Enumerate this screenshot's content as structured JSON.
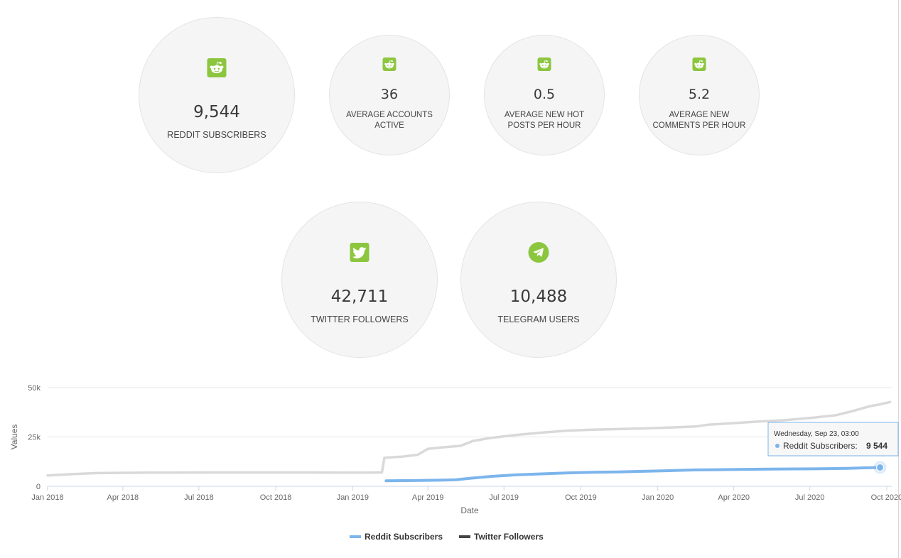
{
  "stats": {
    "reddit_subscribers": {
      "value": "9,544",
      "label": "REDDIT SUBSCRIBERS",
      "icon": "reddit-icon"
    },
    "avg_accounts_active": {
      "value": "36",
      "label_line1": "AVERAGE ACCOUNTS",
      "label_line2": "ACTIVE",
      "icon": "reddit-icon"
    },
    "avg_hot_posts": {
      "value": "0.5",
      "label_line1": "AVERAGE NEW HOT",
      "label_line2": "POSTS PER HOUR",
      "icon": "reddit-icon"
    },
    "avg_comments": {
      "value": "5.2",
      "label_line1": "AVERAGE NEW",
      "label_line2": "COMMENTS PER HOUR",
      "icon": "reddit-icon"
    },
    "twitter_followers": {
      "value": "42,711",
      "label": "TWITTER FOLLOWERS",
      "icon": "twitter-icon"
    },
    "telegram_users": {
      "value": "10,488",
      "label": "TELEGRAM USERS",
      "icon": "telegram-icon"
    }
  },
  "colors": {
    "icon_green": "#8cc63f",
    "reddit_series": "#7cb5ec",
    "twitter_series_line": "#d9d9d9",
    "twitter_legend": "#434348"
  },
  "chart_data": {
    "type": "line",
    "xlabel": "Date",
    "ylabel": "Values",
    "ylim": [
      0,
      50000
    ],
    "y_ticks": [
      "0",
      "25k",
      "50k"
    ],
    "x_ticks": [
      "Jan 2018",
      "Apr 2018",
      "Jul 2018",
      "Oct 2018",
      "Jan 2019",
      "Apr 2019",
      "Jul 2019",
      "Oct 2019",
      "Jan 2020",
      "Apr 2020",
      "Jul 2020",
      "Oct 2020"
    ],
    "grid": true,
    "legend_position": "bottom-center",
    "series": [
      {
        "name": "Reddit Subscribers",
        "points": [
          [
            "2019-02-10",
            2800
          ],
          [
            "2019-03-15",
            2900
          ],
          [
            "2019-04-15",
            3100
          ],
          [
            "2019-05-05",
            3300
          ],
          [
            "2019-05-20",
            4000
          ],
          [
            "2019-06-15",
            5000
          ],
          [
            "2019-07-15",
            5800
          ],
          [
            "2019-08-15",
            6300
          ],
          [
            "2019-09-15",
            6800
          ],
          [
            "2019-10-15",
            7100
          ],
          [
            "2019-11-15",
            7300
          ],
          [
            "2019-12-15",
            7600
          ],
          [
            "2020-01-15",
            7900
          ],
          [
            "2020-02-15",
            8300
          ],
          [
            "2020-03-15",
            8400
          ],
          [
            "2020-04-15",
            8600
          ],
          [
            "2020-05-15",
            8700
          ],
          [
            "2020-06-15",
            8800
          ],
          [
            "2020-07-15",
            8900
          ],
          [
            "2020-08-15",
            9100
          ],
          [
            "2020-09-01",
            9300
          ],
          [
            "2020-09-23",
            9544
          ]
        ]
      },
      {
        "name": "Twitter Followers",
        "points": [
          [
            "2018-01-01",
            5500
          ],
          [
            "2018-02-01",
            6200
          ],
          [
            "2018-03-01",
            6700
          ],
          [
            "2018-05-01",
            6900
          ],
          [
            "2018-08-01",
            7000
          ],
          [
            "2018-11-01",
            7000
          ],
          [
            "2019-01-01",
            6900
          ],
          [
            "2019-02-05",
            7000
          ],
          [
            "2019-02-08",
            14500
          ],
          [
            "2019-03-01",
            15000
          ],
          [
            "2019-03-20",
            16000
          ],
          [
            "2019-04-01",
            19000
          ],
          [
            "2019-04-20",
            19800
          ],
          [
            "2019-05-10",
            20500
          ],
          [
            "2019-05-25",
            23000
          ],
          [
            "2019-06-15",
            24500
          ],
          [
            "2019-07-15",
            26000
          ],
          [
            "2019-08-15",
            27200
          ],
          [
            "2019-09-15",
            28200
          ],
          [
            "2019-10-15",
            28700
          ],
          [
            "2019-11-15",
            29000
          ],
          [
            "2019-12-15",
            29300
          ],
          [
            "2020-01-15",
            29800
          ],
          [
            "2020-02-15",
            30300
          ],
          [
            "2020-03-01",
            31200
          ],
          [
            "2020-04-01",
            32000
          ],
          [
            "2020-05-01",
            32800
          ],
          [
            "2020-06-01",
            33500
          ],
          [
            "2020-07-01",
            34600
          ],
          [
            "2020-08-01",
            36000
          ],
          [
            "2020-08-20",
            38000
          ],
          [
            "2020-09-10",
            40500
          ],
          [
            "2020-09-23",
            41500
          ],
          [
            "2020-10-05",
            42711
          ]
        ]
      }
    ],
    "tooltip": {
      "date": "Wednesday, Sep 23, 03:00",
      "series_name": "Reddit Subscribers",
      "value_text": "9 544"
    }
  }
}
